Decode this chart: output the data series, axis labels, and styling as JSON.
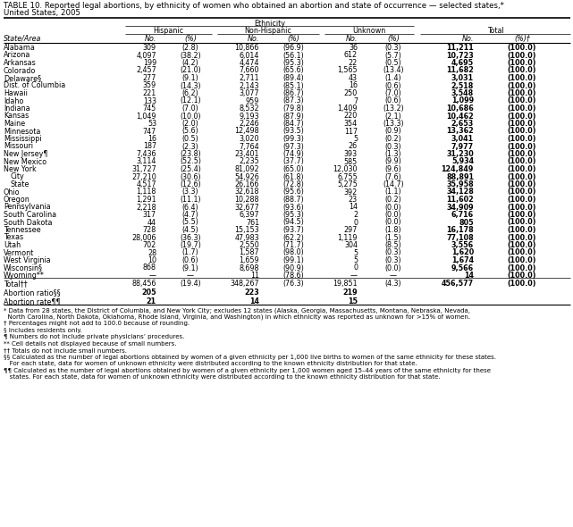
{
  "title_line1": "TABLE 10. Reported legal abortions, by ethnicity of women who obtained an abortion and state of occurrence — selected states,*",
  "title_line2": "United States, 2005",
  "ethnicity_label": "Ethnicity",
  "ethnicity_headers": [
    "Hispanic",
    "Non-Hispanic",
    "Unknown",
    "Total"
  ],
  "rows": [
    [
      "Alabama",
      "309",
      "(2.8)",
      "10,866",
      "(96.9)",
      "36",
      "(0.3)",
      "11,211",
      "(100.0)"
    ],
    [
      "Arizona",
      "4,097",
      "(38.2)",
      "6,014",
      "(56.1)",
      "612",
      "(5.7)",
      "10,723",
      "(100.0)"
    ],
    [
      "Arkansas",
      "199",
      "(4.2)",
      "4,474",
      "(95.3)",
      "22",
      "(0.5)",
      "4,695",
      "(100.0)"
    ],
    [
      "Colorado",
      "2,457",
      "(21.0)",
      "7,660",
      "(65.6)",
      "1,565",
      "(13.4)",
      "11,682",
      "(100.0)"
    ],
    [
      "Delaware§",
      "277",
      "(9.1)",
      "2,711",
      "(89.4)",
      "43",
      "(1.4)",
      "3,031",
      "(100.0)"
    ],
    [
      "Dist. of Columbia",
      "359",
      "(14.3)",
      "2,143",
      "(85.1)",
      "16",
      "(0.6)",
      "2,518",
      "(100.0)"
    ],
    [
      "Hawaii",
      "221",
      "(6.2)",
      "3,077",
      "(86.7)",
      "250",
      "(7.0)",
      "3,548",
      "(100.0)"
    ],
    [
      "Idaho",
      "133",
      "(12.1)",
      "959",
      "(87.3)",
      "7",
      "(0.6)",
      "1,099",
      "(100.0)"
    ],
    [
      "Indiana",
      "745",
      "(7.0)",
      "8,532",
      "(79.8)",
      "1,409",
      "(13.2)",
      "10,686",
      "(100.0)"
    ],
    [
      "Kansas",
      "1,049",
      "(10.0)",
      "9,193",
      "(87.9)",
      "220",
      "(2.1)",
      "10,462",
      "(100.0)"
    ],
    [
      "Maine",
      "53",
      "(2.0)",
      "2,246",
      "(84.7)",
      "354",
      "(13.3)",
      "2,653",
      "(100.0)"
    ],
    [
      "Minnesota",
      "747",
      "(5.6)",
      "12,498",
      "(93.5)",
      "117",
      "(0.9)",
      "13,362",
      "(100.0)"
    ],
    [
      "Mississippi",
      "16",
      "(0.5)",
      "3,020",
      "(99.3)",
      "5",
      "(0.2)",
      "3,041",
      "(100.0)"
    ],
    [
      "Missouri",
      "187",
      "(2.3)",
      "7,764",
      "(97.3)",
      "26",
      "(0.3)",
      "7,977",
      "(100.0)"
    ],
    [
      "New Jersey¶",
      "7,436",
      "(23.8)",
      "23,401",
      "(74.9)",
      "393",
      "(1.3)",
      "31,230",
      "(100.0)"
    ],
    [
      "New Mexico",
      "3,114",
      "(52.5)",
      "2,235",
      "(37.7)",
      "585",
      "(9.9)",
      "5,934",
      "(100.0)"
    ],
    [
      "New York",
      "31,727",
      "(25.4)",
      "81,092",
      "(65.0)",
      "12,030",
      "(9.6)",
      "124,849",
      "(100.0)"
    ],
    [
      "  City",
      "27,210",
      "(30.6)",
      "54,926",
      "(61.8)",
      "6,755",
      "(7.6)",
      "88,891",
      "(100.0)"
    ],
    [
      "  State",
      "4,517",
      "(12.6)",
      "26,166",
      "(72.8)",
      "5,275",
      "(14.7)",
      "35,958",
      "(100.0)"
    ],
    [
      "Ohio",
      "1,118",
      "(3.3)",
      "32,618",
      "(95.6)",
      "392",
      "(1.1)",
      "34,128",
      "(100.0)"
    ],
    [
      "Oregon",
      "1,291",
      "(11.1)",
      "10,288",
      "(88.7)",
      "23",
      "(0.2)",
      "11,602",
      "(100.0)"
    ],
    [
      "Pennsylvania",
      "2,218",
      "(6.4)",
      "32,677",
      "(93.6)",
      "14",
      "(0.0)",
      "34,909",
      "(100.0)"
    ],
    [
      "South Carolina",
      "317",
      "(4.7)",
      "6,397",
      "(95.3)",
      "2",
      "(0.0)",
      "6,716",
      "(100.0)"
    ],
    [
      "South Dakota",
      "44",
      "(5.5)",
      "761",
      "(94.5)",
      "0",
      "(0.0)",
      "805",
      "(100.0)"
    ],
    [
      "Tennessee",
      "728",
      "(4.5)",
      "15,153",
      "(93.7)",
      "297",
      "(1.8)",
      "16,178",
      "(100.0)"
    ],
    [
      "Texas",
      "28,006",
      "(36.3)",
      "47,983",
      "(62.2)",
      "1,119",
      "(1.5)",
      "77,108",
      "(100.0)"
    ],
    [
      "Utah",
      "702",
      "(19.7)",
      "2,550",
      "(71.7)",
      "304",
      "(8.5)",
      "3,556",
      "(100.0)"
    ],
    [
      "Vermont",
      "28",
      "(1.7)",
      "1,587",
      "(98.0)",
      "5",
      "(0.3)",
      "1,620",
      "(100.0)"
    ],
    [
      "West Virginia",
      "10",
      "(0.6)",
      "1,659",
      "(99.1)",
      "5",
      "(0.3)",
      "1,674",
      "(100.0)"
    ],
    [
      "Wisconsin§",
      "868",
      "(9.1)",
      "8,698",
      "(90.9)",
      "0",
      "(0.0)",
      "9,566",
      "(100.0)"
    ],
    [
      "Wyoming**",
      "—",
      "—",
      "11",
      "(78.6)",
      "—",
      "—",
      "14",
      "(100.0)"
    ]
  ],
  "total_row": [
    "Total††",
    "88,456",
    "(19.4)",
    "348,267",
    "(76.3)",
    "19,851",
    "(4.3)",
    "456,577",
    "(100.0)"
  ],
  "ratio_row": [
    "Abortion ratio§§",
    "205",
    "",
    "223",
    "",
    "219",
    "",
    "",
    ""
  ],
  "rate_row": [
    "Abortion rate¶¶",
    "21",
    "",
    "14",
    "",
    "15",
    "",
    "",
    ""
  ],
  "footnotes": [
    "* Data from 28 states, the District of Columbia, and New York City; excludes 12 states (Alaska, Georgia, Massachusetts, Montana, Nebraska, Nevada,",
    "  North Carolina, North Dakota, Oklahoma, Rhode Island, Virginia, and Washington) in which ethnicity was reported as unknown for >15% of women.",
    "† Percentages might not add to 100.0 because of rounding.",
    "§ Includes residents only.",
    "¶ Numbers do not include private physicians’ procedures.",
    "** Cell details not displayed because of small numbers.",
    "†† Totals do not include small numbers.",
    "§§ Calculated as the number of legal abortions obtained by women of a given ethnicity per 1,000 live births to women of the same ethnicity for these states.",
    "   For each state, data for women of unknown ethnicity were distributed according to the known ethnicity distribution for that state.",
    "¶¶ Calculated as the number of legal abortions obtained by women of a given ethnicity per 1,000 women aged 15–44 years of the same ethnicity for these",
    "   states. For each state, data for women of unknown ethnicity were distributed according to the known ethnicity distribution for that state."
  ],
  "figsize": [
    6.41,
    5.9
  ],
  "dpi": 100
}
